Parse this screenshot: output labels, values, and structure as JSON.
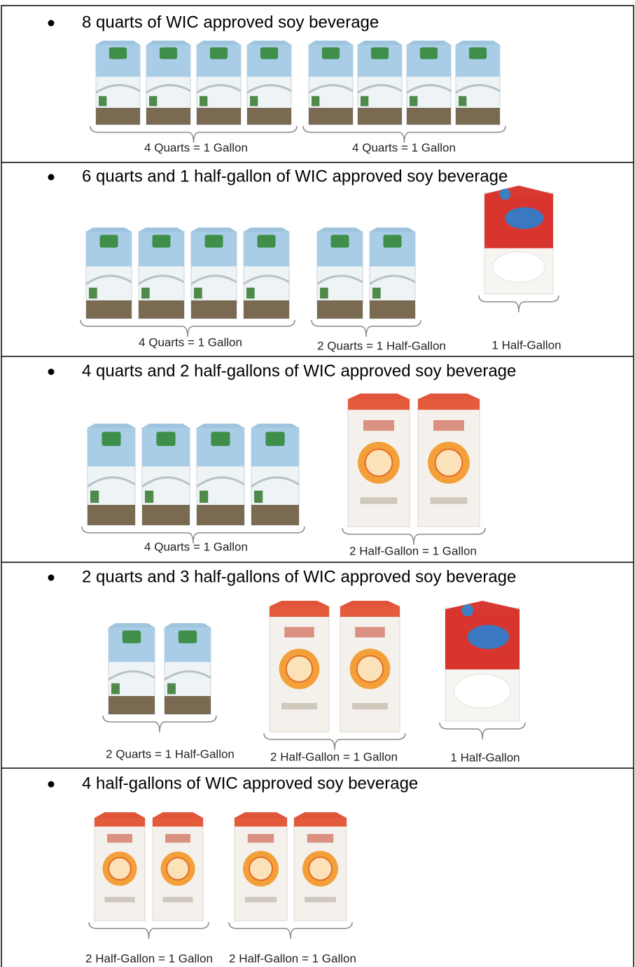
{
  "rows": [
    {
      "text": "8 quarts of WIC approved soy beverage",
      "groups": [
        {
          "label": "4 Quarts = 1 Gallon"
        },
        {
          "label": "4 Quarts = 1 Gallon"
        }
      ]
    },
    {
      "text": "6 quarts and 1 half-gallon of WIC approved soy beverage",
      "groups": [
        {
          "label": "4 Quarts = 1 Gallon"
        },
        {
          "label": "2 Quarts = 1 Half-Gallon"
        },
        {
          "label": "1 Half-Gallon"
        }
      ]
    },
    {
      "text": "4 quarts and 2 half-gallons of WIC approved soy beverage",
      "groups": [
        {
          "label": "4 Quarts = 1 Gallon"
        },
        {
          "label": "2 Half-Gallon = 1 Gallon"
        }
      ]
    },
    {
      "text": "2 quarts and 3 half-gallons of WIC approved soy beverage",
      "groups": [
        {
          "label": "2 Quarts = 1 Half-Gallon"
        },
        {
          "label": "2 Half-Gallon = 1 Gallon"
        },
        {
          "label": "1 Half-Gallon"
        }
      ]
    },
    {
      "text": "4 half-gallons of WIC approved soy beverage",
      "groups": [
        {
          "label": "2 Half-Gallon = 1 Gallon"
        },
        {
          "label": "2 Half-Gallon = 1 Gallon"
        }
      ]
    }
  ]
}
